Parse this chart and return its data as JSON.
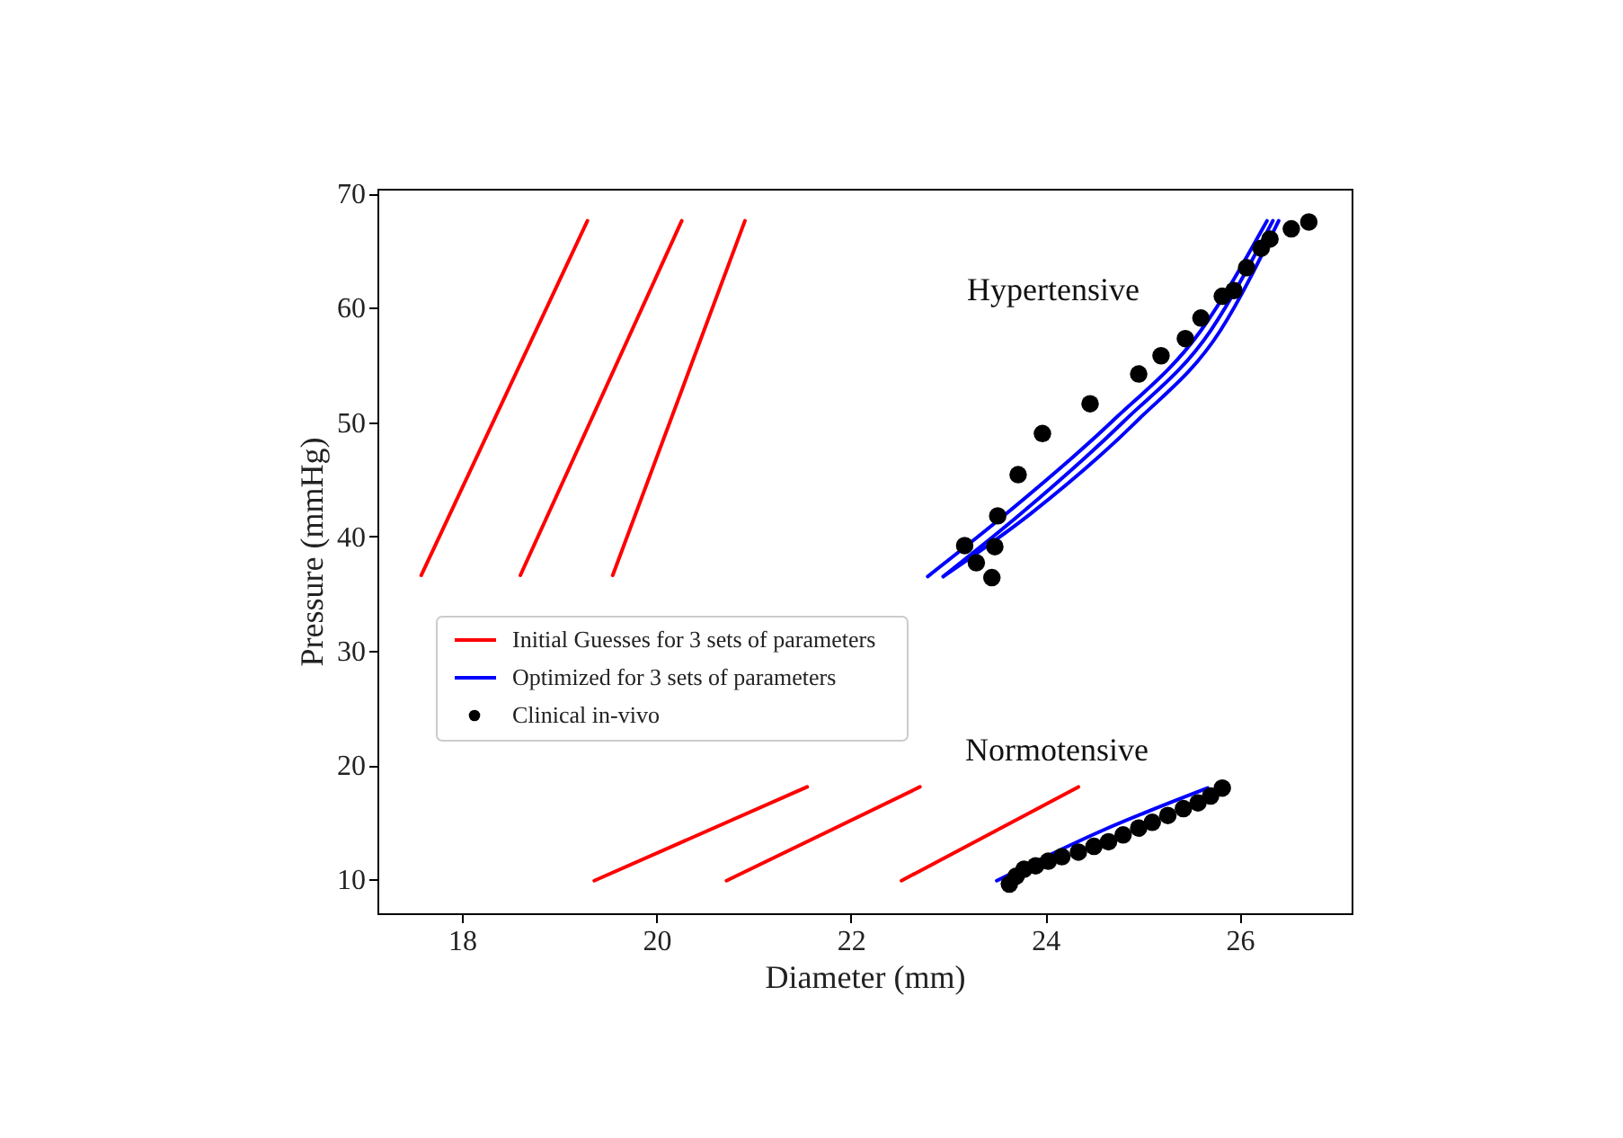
{
  "chart_data": {
    "type": "line",
    "xlabel": "Diameter (mm)",
    "ylabel": "Pressure (mmHg)",
    "xlim": [
      17.13,
      27.15
    ],
    "ylim": [
      7.05,
      70.4
    ],
    "xticks": [
      18,
      20,
      22,
      24,
      26
    ],
    "yticks": [
      10,
      20,
      30,
      40,
      50,
      60,
      70
    ],
    "grid": false,
    "legend": "left",
    "line_style": "solid",
    "annotations": [
      "Hypertensive",
      "Normotensive"
    ],
    "series": [
      {
        "name": "Initial Guesses for 3 sets of parameters",
        "color": "#ff0000",
        "x": [
          17.58,
          19.29
        ],
        "values": [
          36.6,
          67.6
        ]
      },
      {
        "color": "#ff0000",
        "x": [
          18.6,
          20.26
        ],
        "values": [
          36.6,
          67.6
        ]
      },
      {
        "color": "#ff0000",
        "x": [
          19.55,
          20.91
        ],
        "values": [
          36.6,
          67.6
        ]
      },
      {
        "color": "#ff0000",
        "x": [
          19.36,
          21.55
        ],
        "values": [
          9.9,
          18.1
        ]
      },
      {
        "color": "#ff0000",
        "x": [
          20.72,
          22.71
        ],
        "values": [
          9.9,
          18.1
        ]
      },
      {
        "color": "#ff0000",
        "x": [
          22.52,
          24.34
        ],
        "values": [
          9.9,
          18.1
        ]
      },
      {
        "name": "Optimized for 3 sets of parameters",
        "color": "#0000ff",
        "x": [
          22.79,
          23.6,
          24.68,
          25.6,
          26.28
        ],
        "values": [
          36.5,
          42,
          50,
          58,
          67.6
        ]
      },
      {
        "color": "#0000ff",
        "x": [
          22.95,
          23.75,
          24.8,
          25.7,
          26.34
        ],
        "values": [
          36.5,
          42,
          50,
          58,
          67.6
        ]
      },
      {
        "color": "#0000ff",
        "x": [
          22.95,
          23.85,
          24.93,
          25.8,
          26.4
        ],
        "values": [
          36.5,
          42,
          50,
          58,
          67.6
        ]
      },
      {
        "color": "#0000ff",
        "x": [
          23.5,
          24.59,
          25.67
        ],
        "values": [
          9.9,
          14.3,
          18.0
        ]
      },
      {
        "name": "Clinical in-vivo",
        "type": "scatter",
        "marker": "circle",
        "color": "#000000",
        "x": [
          26.71,
          26.53,
          26.31,
          26.22,
          26.07,
          25.94,
          25.82,
          25.6,
          25.44,
          25.19,
          24.96,
          24.46,
          23.97,
          23.72,
          23.51,
          23.17,
          23.48,
          23.29,
          23.45,
          23.63,
          23.7,
          23.78,
          23.9,
          24.03,
          24.17,
          24.34,
          24.5,
          24.65,
          24.8,
          24.96,
          25.1,
          25.26,
          25.42,
          25.57,
          25.7,
          25.82
        ],
        "values": [
          67.5,
          66.9,
          66.0,
          65.2,
          63.5,
          61.5,
          61.0,
          59.1,
          57.3,
          55.8,
          54.2,
          51.6,
          49.0,
          45.4,
          41.8,
          39.2,
          39.1,
          37.7,
          36.4,
          9.6,
          10.3,
          10.9,
          11.2,
          11.6,
          12.0,
          12.4,
          12.9,
          13.3,
          13.9,
          14.5,
          15.0,
          15.6,
          16.2,
          16.7,
          17.3,
          18.0
        ]
      }
    ]
  }
}
